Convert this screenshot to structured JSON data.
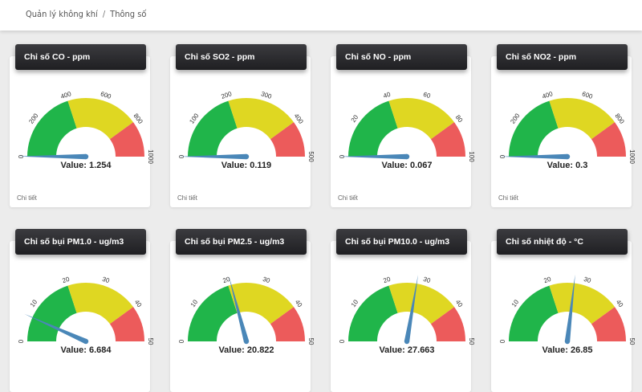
{
  "breadcrumb": {
    "root": "Quản lý không khí",
    "separator": "/",
    "current": "Thông số"
  },
  "colors": {
    "low": "#20b54a",
    "mid": "#dfd722",
    "high": "#ec5b5b",
    "needle": "#4a87b8",
    "header": "#26262a"
  },
  "cards": [
    {
      "title": "Chỉ số CO - ppm",
      "value_label": "Value: 1.254",
      "value": 1.254,
      "min": 0,
      "max": 1000,
      "ticks": [
        "0",
        "200",
        "400",
        "600",
        "800",
        "1000"
      ],
      "bands": [
        400,
        800
      ],
      "footer": "Chi tiết"
    },
    {
      "title": "Chỉ số SO2 - ppm",
      "value_label": "Value: 0.119",
      "value": 0.119,
      "min": 0,
      "max": 500,
      "ticks": [
        "0",
        "100",
        "200",
        "300",
        "400",
        "500"
      ],
      "bands": [
        200,
        400
      ],
      "footer": "Chi tiết"
    },
    {
      "title": "Chỉ số NO - ppm",
      "value_label": "Value: 0.067",
      "value": 0.067,
      "min": 0,
      "max": 100,
      "ticks": [
        "0",
        "20",
        "40",
        "60",
        "80",
        "100"
      ],
      "bands": [
        40,
        80
      ],
      "footer": "Chi tiết"
    },
    {
      "title": "Chỉ số NO2 - ppm",
      "value_label": "Value: 0.3",
      "value": 0.3,
      "min": 0,
      "max": 1000,
      "ticks": [
        "0",
        "200",
        "400",
        "600",
        "800",
        "1000"
      ],
      "bands": [
        400,
        800
      ],
      "footer": "Chi tiết"
    },
    {
      "title": "Chỉ số bụi PM1.0 - ug/m3",
      "value_label": "Value: 6.684",
      "value": 6.684,
      "min": 0,
      "max": 50,
      "ticks": [
        "0",
        "10",
        "20",
        "30",
        "40",
        "50"
      ],
      "bands": [
        20,
        40
      ],
      "footer": ""
    },
    {
      "title": "Chỉ số bụi PM2.5 - ug/m3",
      "value_label": "Value: 20.822",
      "value": 20.822,
      "min": 0,
      "max": 50,
      "ticks": [
        "0",
        "10",
        "20",
        "30",
        "40",
        "50"
      ],
      "bands": [
        20,
        40
      ],
      "footer": ""
    },
    {
      "title": "Chỉ số bụi PM10.0 - ug/m3",
      "value_label": "Value: 27.663",
      "value": 27.663,
      "min": 0,
      "max": 50,
      "ticks": [
        "0",
        "10",
        "20",
        "30",
        "40",
        "50"
      ],
      "bands": [
        20,
        40
      ],
      "footer": ""
    },
    {
      "title": "Chỉ số nhiệt độ - °C",
      "value_label": "Value: 26.85",
      "value": 26.85,
      "min": 0,
      "max": 50,
      "ticks": [
        "0",
        "10",
        "20",
        "30",
        "40",
        "50"
      ],
      "bands": [
        20,
        40
      ],
      "footer": ""
    }
  ]
}
